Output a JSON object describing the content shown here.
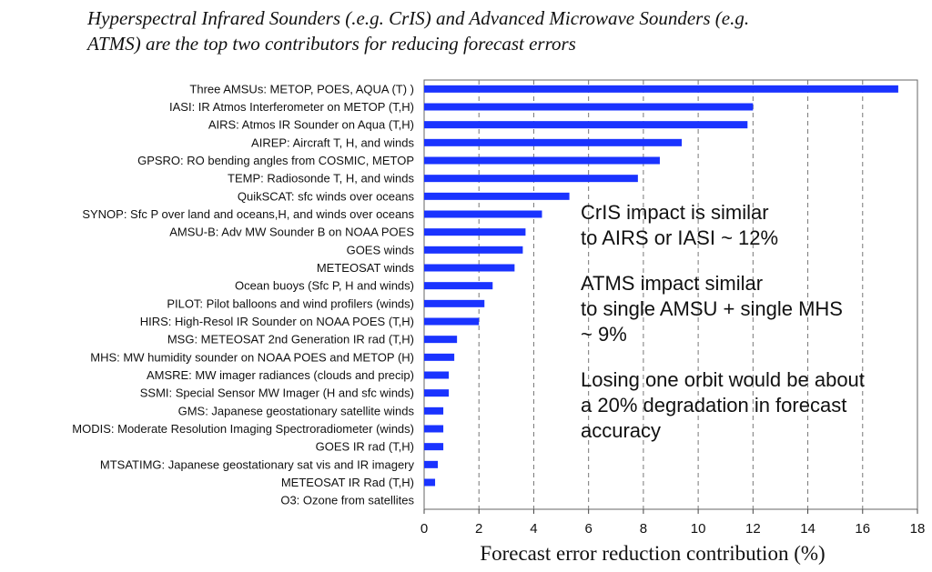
{
  "title": {
    "line1": "Hyperspectral Infrared Sounders (.e.g. CrIS) and Advanced Microwave Sounders (e.g.",
    "line2": "ATMS) are the top two contributors for reducing forecast errors"
  },
  "chart_data": {
    "type": "bar",
    "orientation": "horizontal",
    "title": "Hyperspectral Infrared Sounders (.e.g. CrIS) and Advanced Microwave Sounders (e.g. ATMS) are the top two contributors for reducing forecast errors",
    "xlabel": "Forecast error reduction contribution (%)",
    "ylabel": "",
    "xlim": [
      0,
      18
    ],
    "xticks": [
      0,
      2,
      4,
      6,
      8,
      10,
      12,
      14,
      16,
      18
    ],
    "grid": "vertical dashed",
    "bar_color": "#1a33ff",
    "categories": [
      "Three AMSUs: METOP, POES, AQUA (T) )",
      "IASI: IR Atmos Interferometer on METOP (T,H)",
      "AIRS: Atmos IR Sounder on Aqua (T,H)",
      "AIREP: Aircraft T, H, and winds",
      "GPSRO: RO bending angles from COSMIC, METOP",
      "TEMP: Radiosonde T, H, and winds",
      "QuikSCAT: sfc winds over oceans",
      "SYNOP: Sfc P over land and oceans,H, and winds over oceans",
      "AMSU-B: Adv MW Sounder B on NOAA POES",
      "GOES winds",
      "METEOSAT winds",
      "Ocean buoys (Sfc P, H and winds)",
      "PILOT: Pilot balloons and wind profilers (winds)",
      "HIRS: High-Resol IR Sounder on NOAA POES (T,H)",
      "MSG: METEOSAT 2nd Generation IR rad (T,H)",
      "MHS: MW humidity sounder on NOAA POES and METOP (H)",
      "AMSRE: MW imager radiances (clouds and precip)",
      "SSMI: Special Sensor MW Imager (H and sfc winds)",
      "GMS: Japanese geostationary satellite winds",
      "MODIS: Moderate Resolution Imaging Spectroradiometer (winds)",
      "GOES IR rad (T,H)",
      "MTSATIMG: Japanese geostationary sat vis and IR imagery",
      "METEOSAT IR Rad (T,H)",
      "O3: Ozone from satellites"
    ],
    "values": [
      17.3,
      12.0,
      11.8,
      9.4,
      8.6,
      7.8,
      5.3,
      4.3,
      3.7,
      3.6,
      3.3,
      2.5,
      2.2,
      2.0,
      1.2,
      1.1,
      0.9,
      0.9,
      0.7,
      0.7,
      0.7,
      0.5,
      0.4,
      0.0
    ],
    "annotations": [
      [
        "CrIS impact is similar",
        "to AIRS or IASI ~ 12%"
      ],
      [
        "ATMS impact similar",
        "to single AMSU + single MHS",
        "~ 9%"
      ],
      [
        "Losing one orbit would be about",
        "a 20% degradation in forecast",
        "accuracy"
      ]
    ]
  }
}
